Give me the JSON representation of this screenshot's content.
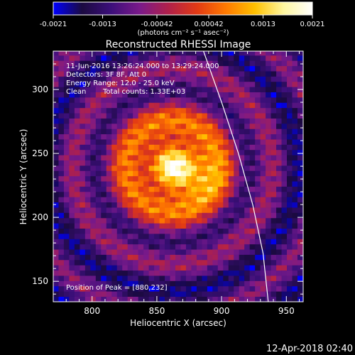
{
  "chart_data": {
    "type": "heatmap",
    "title": "Reconstructed RHESSI Image",
    "xlabel": "Heliocentric X (arcsec)",
    "ylabel": "Heliocentric Y (arcsec)",
    "xlim": [
      770,
      963
    ],
    "ylim": [
      134,
      330
    ],
    "x_ticks": [
      800,
      850,
      900,
      950
    ],
    "y_ticks": [
      150,
      200,
      250,
      300
    ],
    "colorbar": {
      "min": -0.0021,
      "max": 0.0021,
      "tick_values": [
        -0.0021,
        -0.0013,
        -0.00042,
        0.00042,
        0.0013,
        0.0021
      ],
      "tick_labels": [
        "-0.0021",
        "-0.0013",
        "-0.00042",
        "0.00042",
        "0.0013",
        "0.0021"
      ],
      "units_label": "(photons cm⁻² s⁻¹ asec⁻²)",
      "colors": [
        "#0000ff",
        "#1b0a40",
        "#3c0f7a",
        "#7a1a8a",
        "#b0204a",
        "#e23a14",
        "#ff7a00",
        "#ffc000",
        "#fff7a0",
        "#ffffff"
      ]
    },
    "annotations": [
      "11-Jun-2016 13:26:24.000 to 13:29:24.000",
      "Detectors: 3F 8F, Att 0",
      "Energy Range: 12.0 - 25.0 keV",
      "Clean",
      "Total counts: 1.33E+03"
    ],
    "peak_label": "Position of Peak = [880,232]",
    "peak": [
      880,
      232
    ],
    "source_center": [
      862,
      240
    ],
    "limb_arc": [
      [
        886,
        330
      ],
      [
        900,
        290
      ],
      [
        913,
        250
      ],
      [
        924,
        210
      ],
      [
        932,
        172
      ],
      [
        936,
        134
      ]
    ],
    "grid": false,
    "legend": "none"
  },
  "footer": {
    "timestamp": "12-Apr-2018 02:40"
  }
}
